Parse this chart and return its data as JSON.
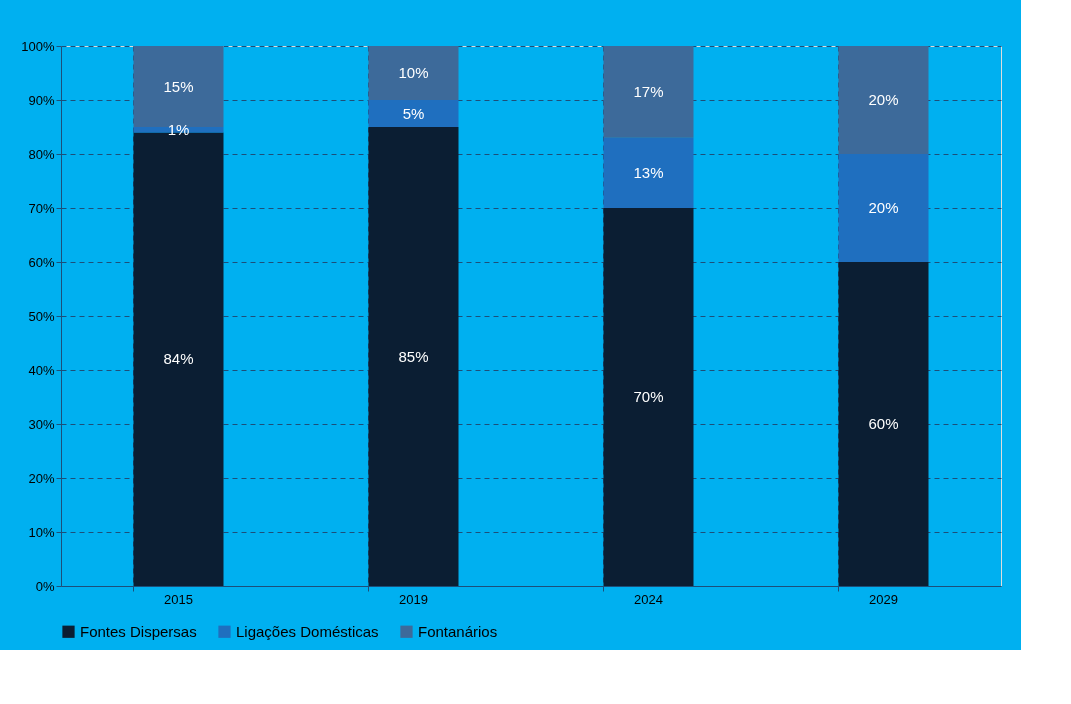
{
  "chart_data": {
    "type": "bar",
    "stacked": true,
    "categories": [
      "2015",
      "2019",
      "2024",
      "2029"
    ],
    "series": [
      {
        "name": "Fontes Dispersas",
        "color": "#0b1e33",
        "values": [
          84,
          85,
          70,
          60
        ],
        "value_labels": [
          "84%",
          "85%",
          "70%",
          "60%"
        ]
      },
      {
        "name": "Ligações Domésticas",
        "color": "#1f6fbf",
        "values": [
          1,
          5,
          13,
          20
        ],
        "value_labels": [
          "1%",
          "5%",
          "13%",
          "20%"
        ]
      },
      {
        "name": "Fontanários",
        "color": "#3d6a9a",
        "values": [
          15,
          10,
          17,
          20
        ],
        "value_labels": [
          "15%",
          "10%",
          "17%",
          "20%"
        ]
      }
    ],
    "ylim": [
      0,
      100
    ],
    "yticks": [
      {
        "value": 0,
        "label": "0%"
      },
      {
        "value": 10,
        "label": "10%"
      },
      {
        "value": 20,
        "label": "20%"
      },
      {
        "value": 30,
        "label": "30%"
      },
      {
        "value": 40,
        "label": "40%"
      },
      {
        "value": 50,
        "label": "50%"
      },
      {
        "value": 60,
        "label": "60%"
      },
      {
        "value": 70,
        "label": "70%"
      },
      {
        "value": 80,
        "label": "80%"
      },
      {
        "value": 90,
        "label": "90%"
      },
      {
        "value": 100,
        "label": "100%"
      }
    ],
    "grid": true,
    "legend": "bottom"
  }
}
